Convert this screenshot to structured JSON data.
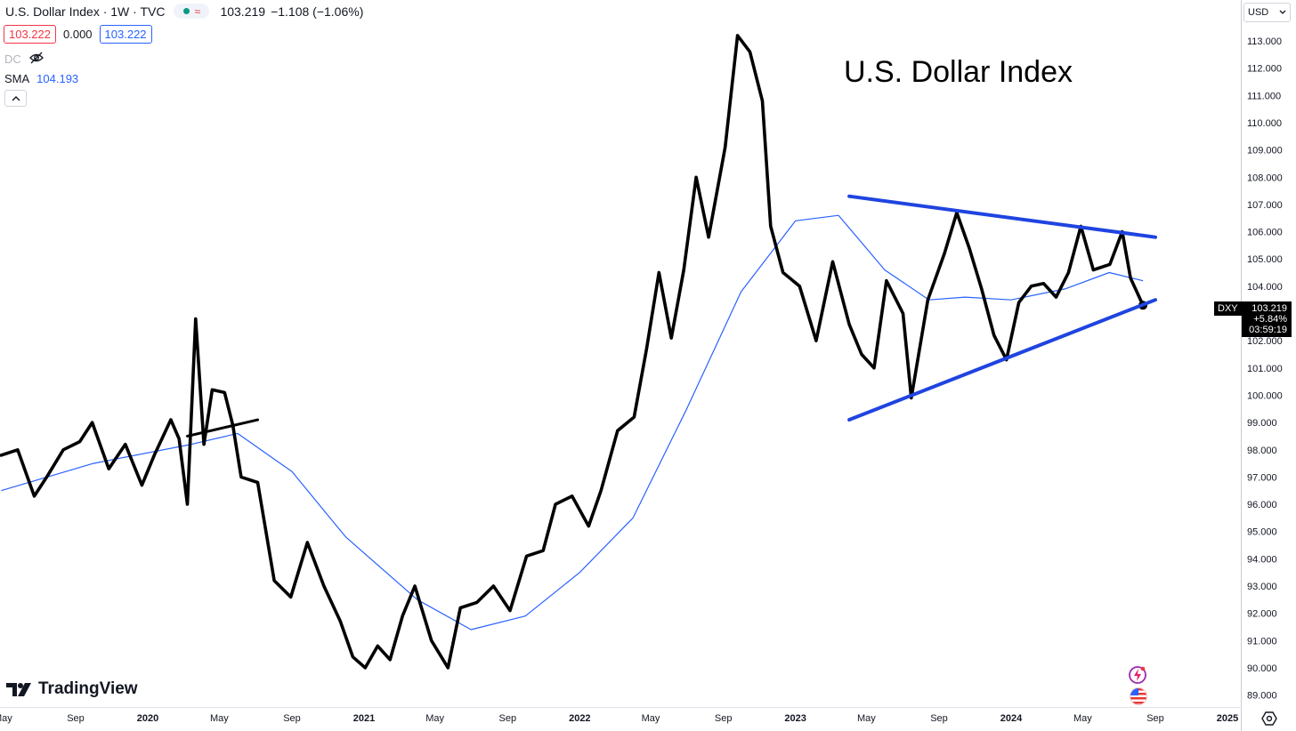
{
  "header": {
    "title": "U.S. Dollar Index · 1W · TVC",
    "last": "103.219",
    "change": "−1.108 (−1.06%)",
    "sell": "103.222",
    "spread": "0.000",
    "buy": "103.222",
    "dc_label": "DC",
    "sma_label": "SMA",
    "sma_value": "104.193"
  },
  "annotation_title": "U.S. Dollar Index",
  "currency_button": "USD",
  "symbol_tag": "DXY",
  "price_tag": {
    "price": "103.219",
    "change": "+5.84%",
    "countdown": "03:59:19"
  },
  "brand": "TradingView",
  "colors": {
    "price_line": "#000000",
    "sma_line": "#2962ff",
    "trend_lines": "#1f44e0",
    "up": "#089981",
    "down": "#f23645"
  },
  "icons": [
    "eye-off-icon",
    "chevron-up-icon",
    "chevron-down-icon",
    "tradingview-logo-icon",
    "settings-icon",
    "lightning-icon",
    "us-flag-icon"
  ],
  "chart_data": {
    "type": "line",
    "y_axis": {
      "min": 89.0,
      "max": 113.0,
      "ticks": [
        "113.000",
        "112.000",
        "111.000",
        "110.000",
        "109.000",
        "108.000",
        "107.000",
        "106.000",
        "105.000",
        "104.000",
        "103.000",
        "102.000",
        "101.000",
        "100.000",
        "99.000",
        "98.000",
        "97.000",
        "96.000",
        "95.000",
        "94.000",
        "93.000",
        "92.000",
        "91.000",
        "90.000",
        "89.000"
      ]
    },
    "x_axis": {
      "start": "2019-05",
      "end": "2025-01",
      "ticks": [
        "May",
        "Sep",
        "2020",
        "May",
        "Sep",
        "2021",
        "May",
        "Sep",
        "2022",
        "May",
        "Sep",
        "2023",
        "May",
        "Sep",
        "2024",
        "May",
        "Sep",
        "2025"
      ]
    },
    "grid": false,
    "series": [
      {
        "name": "DXY",
        "points": [
          [
            "2019-04-28",
            97.8
          ],
          [
            "2019-05-26",
            98.0
          ],
          [
            "2019-06-23",
            96.3
          ],
          [
            "2019-07-14",
            97.0
          ],
          [
            "2019-08-11",
            98.0
          ],
          [
            "2019-09-08",
            98.3
          ],
          [
            "2019-09-29",
            99.0
          ],
          [
            "2019-10-27",
            97.3
          ],
          [
            "2019-11-24",
            98.2
          ],
          [
            "2019-12-22",
            96.7
          ],
          [
            "2020-01-12",
            97.8
          ],
          [
            "2020-02-09",
            99.1
          ],
          [
            "2020-02-23",
            98.4
          ],
          [
            "2020-03-08",
            96.0
          ],
          [
            "2020-03-22",
            102.8
          ],
          [
            "2020-04-05",
            98.2
          ],
          [
            "2020-04-19",
            100.2
          ],
          [
            "2020-05-10",
            100.1
          ],
          [
            "2020-05-24",
            98.9
          ],
          [
            "2020-06-07",
            97.0
          ],
          [
            "2020-07-05",
            96.8
          ],
          [
            "2020-08-02",
            93.2
          ],
          [
            "2020-08-30",
            92.6
          ],
          [
            "2020-09-27",
            94.6
          ],
          [
            "2020-10-25",
            93.0
          ],
          [
            "2020-11-22",
            91.7
          ],
          [
            "2020-12-13",
            90.4
          ],
          [
            "2021-01-03",
            90.0
          ],
          [
            "2021-01-24",
            90.8
          ],
          [
            "2021-02-14",
            90.3
          ],
          [
            "2021-03-07",
            91.9
          ],
          [
            "2021-03-28",
            93.0
          ],
          [
            "2021-04-25",
            91.0
          ],
          [
            "2021-05-23",
            90.0
          ],
          [
            "2021-06-13",
            92.2
          ],
          [
            "2021-07-11",
            92.4
          ],
          [
            "2021-08-08",
            93.0
          ],
          [
            "2021-09-05",
            92.1
          ],
          [
            "2021-10-03",
            94.1
          ],
          [
            "2021-10-31",
            94.3
          ],
          [
            "2021-11-21",
            96.0
          ],
          [
            "2021-12-19",
            96.3
          ],
          [
            "2022-01-16",
            95.2
          ],
          [
            "2022-02-06",
            96.5
          ],
          [
            "2022-03-06",
            98.7
          ],
          [
            "2022-04-03",
            99.2
          ],
          [
            "2022-04-24",
            101.7
          ],
          [
            "2022-05-15",
            104.5
          ],
          [
            "2022-06-05",
            102.1
          ],
          [
            "2022-06-26",
            104.6
          ],
          [
            "2022-07-17",
            108.0
          ],
          [
            "2022-08-07",
            105.8
          ],
          [
            "2022-09-04",
            109.1
          ],
          [
            "2022-09-25",
            113.2
          ],
          [
            "2022-10-16",
            112.6
          ],
          [
            "2022-11-06",
            110.8
          ],
          [
            "2022-11-20",
            106.2
          ],
          [
            "2022-12-11",
            104.5
          ],
          [
            "2023-01-08",
            104.0
          ],
          [
            "2023-02-05",
            102.0
          ],
          [
            "2023-03-05",
            104.9
          ],
          [
            "2023-04-02",
            102.6
          ],
          [
            "2023-04-23",
            101.5
          ],
          [
            "2023-05-14",
            101.0
          ],
          [
            "2023-06-04",
            104.2
          ],
          [
            "2023-07-02",
            103.0
          ],
          [
            "2023-07-16",
            99.9
          ],
          [
            "2023-08-13",
            103.5
          ],
          [
            "2023-09-10",
            105.2
          ],
          [
            "2023-10-01",
            106.7
          ],
          [
            "2023-10-22",
            105.4
          ],
          [
            "2023-11-12",
            103.9
          ],
          [
            "2023-12-03",
            102.2
          ],
          [
            "2023-12-24",
            101.3
          ],
          [
            "2024-01-14",
            103.4
          ],
          [
            "2024-02-04",
            104.0
          ],
          [
            "2024-02-25",
            104.1
          ],
          [
            "2024-03-17",
            103.6
          ],
          [
            "2024-04-07",
            104.5
          ],
          [
            "2024-04-28",
            106.2
          ],
          [
            "2024-05-19",
            104.6
          ],
          [
            "2024-06-16",
            104.8
          ],
          [
            "2024-07-07",
            106.0
          ],
          [
            "2024-07-21",
            104.3
          ],
          [
            "2024-08-11",
            103.3
          ]
        ]
      },
      {
        "name": "SMA",
        "points": [
          [
            "2019-04-28",
            96.5
          ],
          [
            "2019-10-01",
            97.5
          ],
          [
            "2020-03-15",
            98.2
          ],
          [
            "2020-06-01",
            98.6
          ],
          [
            "2020-09-01",
            97.2
          ],
          [
            "2020-12-01",
            94.8
          ],
          [
            "2021-04-01",
            92.5
          ],
          [
            "2021-07-01",
            91.4
          ],
          [
            "2021-10-01",
            91.9
          ],
          [
            "2022-01-01",
            93.5
          ],
          [
            "2022-04-01",
            95.5
          ],
          [
            "2022-07-01",
            99.5
          ],
          [
            "2022-10-01",
            103.8
          ],
          [
            "2023-01-01",
            106.4
          ],
          [
            "2023-03-15",
            106.6
          ],
          [
            "2023-06-01",
            104.6
          ],
          [
            "2023-08-15",
            103.5
          ],
          [
            "2023-10-15",
            103.6
          ],
          [
            "2024-01-01",
            103.5
          ],
          [
            "2024-04-01",
            103.9
          ],
          [
            "2024-06-15",
            104.5
          ],
          [
            "2024-08-11",
            104.2
          ]
        ]
      }
    ],
    "trend_lines": [
      {
        "from": [
          "2020-03-08",
          98.5
        ],
        "to": [
          "2020-07-05",
          99.1
        ]
      },
      {
        "from": [
          "2023-04-02",
          107.3
        ],
        "to": [
          "2024-09-01",
          105.8
        ]
      },
      {
        "from": [
          "2023-04-02",
          99.1
        ],
        "to": [
          "2024-09-01",
          103.5
        ]
      }
    ]
  }
}
